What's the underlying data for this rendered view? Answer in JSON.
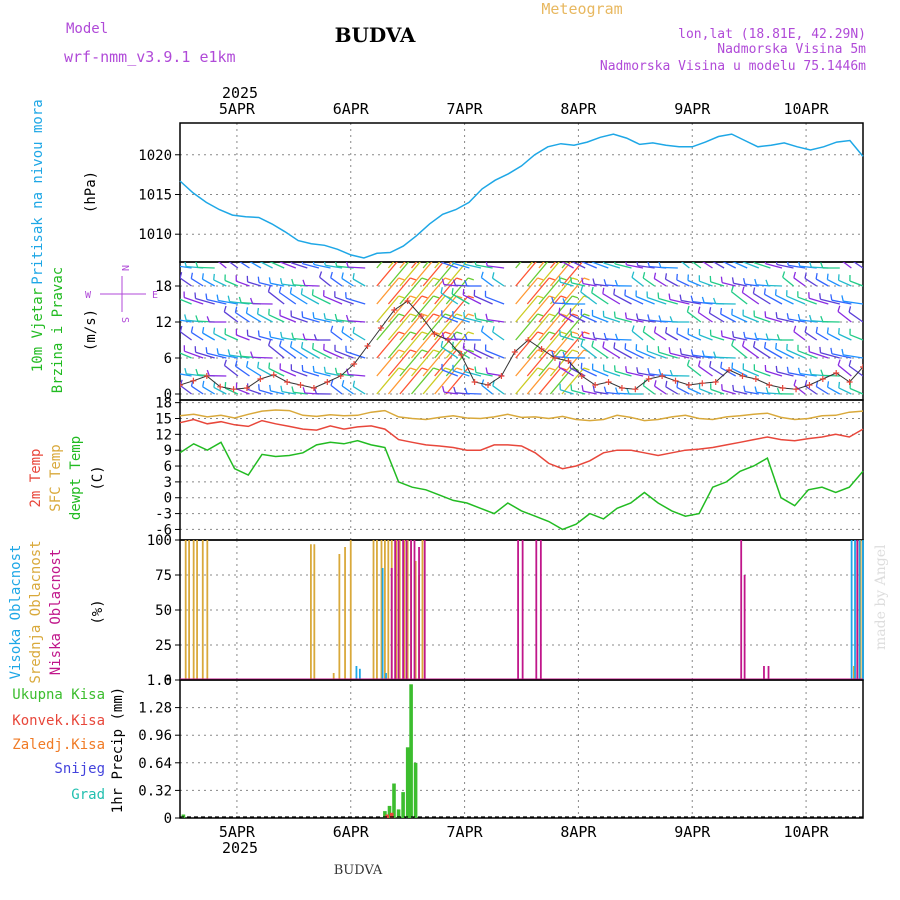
{
  "header": {
    "model_label": "Model",
    "model_name": "wrf-nmm_v3.9.1 e1km",
    "station": "BUDVA",
    "product": "Meteogram",
    "coords": "lon,lat (18.81E, 42.29N)",
    "elevation": "Nadmorska Visina 5m",
    "model_elevation": "Nadmorska Visina u modelu 75.1446m",
    "footer_station": "BUDVA",
    "watermark": "made by Angel"
  },
  "colors": {
    "pressure": "#1ea7e6",
    "temp2m": "#e8473b",
    "sfc_temp": "#d9a93b",
    "dewpt": "#22bb22",
    "high_cloud": "#1ea7e6",
    "mid_cloud": "#d9a93b",
    "low_cloud": "#c0168a",
    "precip_total": "#3cbd2e",
    "convective": "#e8473b",
    "freezing": "#f07b26",
    "snow": "#4444dd",
    "hail": "#22c0b0",
    "model_purple": "#b04ad8"
  },
  "chart_data": [
    {
      "type": "line",
      "name": "pressure",
      "ylabel_left": "Pritisak na nivou mora",
      "ylabel_unit": "(hPa)",
      "x_dates_top": [
        "5APR",
        "6APR",
        "7APR",
        "8APR",
        "9APR",
        "10APR"
      ],
      "x_year": "2025",
      "yticks": [
        "1010",
        "1015",
        "1020"
      ],
      "ylim": [
        1006.5,
        1024
      ],
      "series": [
        {
          "values": [
            1016.7,
            1015.2,
            1014.0,
            1013.1,
            1012.4,
            1012.2,
            1012.1,
            1011.3,
            1010.3,
            1009.2,
            1008.8,
            1008.6,
            1008.1,
            1007.4,
            1007.0,
            1007.6,
            1007.7,
            1008.5,
            1009.8,
            1011.3,
            1012.5,
            1013.1,
            1014.0,
            1015.7,
            1016.8,
            1017.6,
            1018.6,
            1020.0,
            1021.0,
            1021.4,
            1021.2,
            1021.6,
            1022.2,
            1022.6,
            1022.1,
            1021.3,
            1021.5,
            1021.2,
            1021.0,
            1021.0,
            1021.6,
            1022.3,
            1022.6,
            1021.8,
            1021.0,
            1021.2,
            1021.5,
            1021.0,
            1020.6,
            1021.0,
            1021.6,
            1021.8,
            1019.8
          ]
        }
      ]
    },
    {
      "type": "barbs",
      "name": "wind",
      "ylabel_left": [
        "10m Vjetar",
        "Brzina i Pravac"
      ],
      "ylabel_unit": "(m/s)",
      "compass": [
        "N",
        "S",
        "W",
        "E"
      ],
      "yticks": [
        "0",
        "6",
        "12",
        "18"
      ],
      "ylim": [
        -1,
        22
      ],
      "speed_series": [
        {
          "values": [
            1.5,
            2.2,
            3.0,
            1.2,
            0.8,
            1.0,
            2.5,
            3.2,
            2.0,
            1.5,
            1.0,
            2.0,
            3.0,
            5.0,
            8.0,
            11.0,
            14.0,
            15.5,
            13.0,
            10.0,
            9.0,
            6.5,
            2.0,
            1.5,
            3.0,
            7.0,
            9.0,
            7.5,
            6.0,
            5.5,
            3.0,
            1.5,
            2.0,
            1.0,
            0.8,
            2.5,
            3.0,
            2.2,
            1.5,
            1.8,
            2.0,
            4.0,
            3.0,
            2.5,
            1.5,
            1.0,
            0.8,
            1.5,
            2.5,
            3.5,
            2.0,
            4.5
          ]
        }
      ],
      "barb_levels": [
        "0",
        "6",
        "12",
        "18"
      ]
    },
    {
      "type": "line",
      "name": "temperature",
      "ylabel_left": [
        "2m Temp",
        "SFC Temp",
        "dewpt Temp"
      ],
      "ylabel_unit": "(C)",
      "yticks": [
        "-6",
        "-3",
        "0",
        "3",
        "6",
        "9",
        "12",
        "15",
        "18"
      ],
      "ylim": [
        -8,
        18.5
      ],
      "series": [
        {
          "name": "SFC Temp",
          "values": [
            15.5,
            15.8,
            15.3,
            15.6,
            15.1,
            15.8,
            16.4,
            16.6,
            16.5,
            15.6,
            15.4,
            15.7,
            15.5,
            15.6,
            16.2,
            16.5,
            15.3,
            15.0,
            14.8,
            15.2,
            15.5,
            15.1,
            15.0,
            15.3,
            15.8,
            15.2,
            15.3,
            15.0,
            15.4,
            14.8,
            14.6,
            14.8,
            15.6,
            15.2,
            14.6,
            14.8,
            15.3,
            15.6,
            15.0,
            14.8,
            15.3,
            15.5,
            15.8,
            16.0,
            15.2,
            14.8,
            15.0,
            15.5,
            15.6,
            16.2,
            16.4
          ]
        },
        {
          "name": "2m Temp",
          "values": [
            14.2,
            14.8,
            14.0,
            14.4,
            13.8,
            13.5,
            14.6,
            14.0,
            13.5,
            13.0,
            12.8,
            13.6,
            13.0,
            13.4,
            13.6,
            13.0,
            11.0,
            10.5,
            10.0,
            9.8,
            9.5,
            9.0,
            9.0,
            10.0,
            10.0,
            9.8,
            8.5,
            6.5,
            5.5,
            6.0,
            7.0,
            8.5,
            9.0,
            9.0,
            8.5,
            8.0,
            8.5,
            9.0,
            9.2,
            9.5,
            10.0,
            10.5,
            11.0,
            11.5,
            11.0,
            10.8,
            11.2,
            11.5,
            12.0,
            11.5,
            13.0
          ]
        },
        {
          "name": "dewpt Temp",
          "values": [
            8.5,
            10.2,
            9.0,
            10.5,
            5.5,
            4.3,
            8.2,
            7.8,
            8.0,
            8.5,
            10.0,
            10.5,
            10.2,
            10.8,
            10.0,
            9.5,
            3.0,
            2.0,
            1.5,
            0.5,
            -0.5,
            -1.0,
            -2.0,
            -3.0,
            -1.0,
            -2.5,
            -3.5,
            -4.5,
            -6.0,
            -5.0,
            -3.0,
            -4.0,
            -2.0,
            -1.0,
            1.0,
            -1.0,
            -2.5,
            -3.5,
            -3.0,
            2.0,
            3.0,
            5.0,
            6.0,
            7.5,
            0.0,
            -1.5,
            1.5,
            2.0,
            1.0,
            2.0,
            5.0
          ]
        }
      ]
    },
    {
      "type": "bar",
      "name": "cloud",
      "ylabel_left": [
        "Visoka Oblacnost",
        "Srednja Oblacnost",
        "Niska Oblacnost"
      ],
      "ylabel_unit": "(%)",
      "yticks": [
        "0",
        "25",
        "50",
        "75",
        "100"
      ],
      "ylim": [
        0,
        100
      ],
      "series": [
        {
          "name": "Srednja Oblacnost",
          "x": [
            4.55,
            4.58,
            4.62,
            4.65,
            4.7,
            4.74,
            5.65,
            5.68,
            5.85,
            5.9,
            5.95,
            6.0,
            6.2,
            6.23,
            6.27,
            6.3,
            6.33,
            6.36,
            6.4,
            6.43,
            6.47,
            6.5,
            6.53,
            6.57,
            6.6,
            6.63,
            10.42,
            10.45,
            10.48
          ],
          "values": [
            100,
            100,
            100,
            100,
            100,
            100,
            97,
            97,
            5,
            90,
            95,
            100,
            100,
            100,
            100,
            100,
            100,
            100,
            100,
            100,
            100,
            100,
            100,
            85,
            75,
            100,
            10,
            100,
            100
          ]
        },
        {
          "name": "Niska Oblacnost",
          "x": [
            6.36,
            6.39,
            6.42,
            6.46,
            6.49,
            6.53,
            6.56,
            6.6,
            6.65,
            7.47,
            7.51,
            7.63,
            7.67,
            9.43,
            9.46,
            9.63,
            9.67,
            10.45
          ],
          "values": [
            80,
            100,
            100,
            100,
            100,
            100,
            100,
            95,
            100,
            100,
            100,
            100,
            100,
            100,
            75,
            10,
            10,
            100
          ]
        },
        {
          "name": "Visoka Oblacnost",
          "x": [
            6.05,
            6.08,
            6.28,
            6.31,
            10.4,
            10.43,
            10.47,
            10.5
          ],
          "values": [
            10,
            8,
            80,
            5,
            100,
            100,
            100,
            100
          ]
        }
      ]
    },
    {
      "type": "bar",
      "name": "precip",
      "ylabel_unit": "1hr Precip (mm)",
      "legend": [
        "Ukupna Kisa",
        "Konvek.Kisa",
        "Zaledj.Kisa",
        "Snijeg",
        "Grad"
      ],
      "yticks": [
        "0",
        "0.32",
        "0.64",
        "0.96",
        "1.28",
        "1.6"
      ],
      "ylim": [
        0,
        1.6
      ],
      "x_dates_bottom": [
        "5APR",
        "6APR",
        "7APR",
        "8APR",
        "9APR",
        "10APR"
      ],
      "x_year": "2025",
      "series": [
        {
          "name": "Ukupna Kisa",
          "x": [
            4.53,
            6.3,
            6.34,
            6.38,
            6.42,
            6.46,
            6.5,
            6.53,
            6.57
          ],
          "values": [
            0.04,
            0.08,
            0.14,
            0.4,
            0.1,
            0.3,
            0.82,
            1.55,
            0.64
          ]
        },
        {
          "name": "Konvek.Kisa",
          "x": [
            6.32,
            6.36
          ],
          "values": [
            0.04,
            0.06
          ]
        }
      ]
    }
  ]
}
